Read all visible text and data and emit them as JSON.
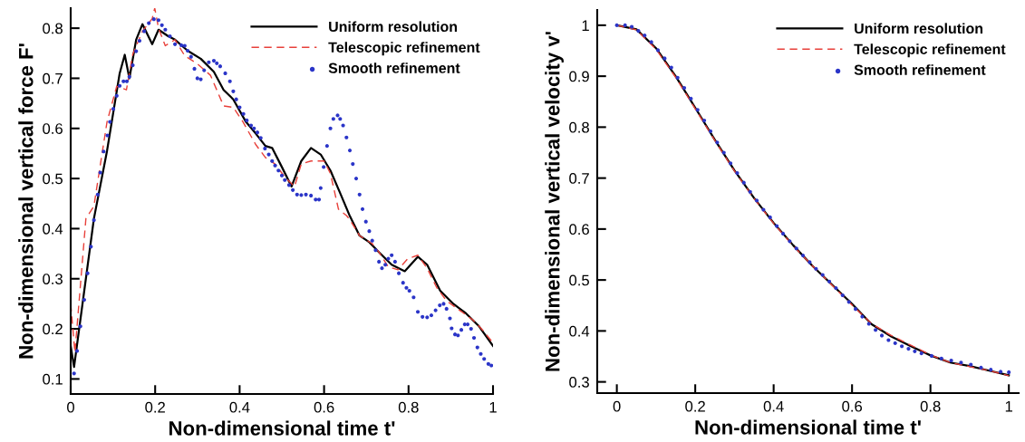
{
  "chart_data": [
    {
      "type": "line",
      "xlabel": "Non-dimensional time t'",
      "ylabel": "Non-dimensional vertical force F'",
      "xlim": [
        0,
        1
      ],
      "ylim": [
        0.07,
        0.84
      ],
      "xticks": [
        0,
        0.2,
        0.4,
        0.6,
        0.8,
        1
      ],
      "yticks": [
        0.1,
        0.2,
        0.3,
        0.4,
        0.5,
        0.6,
        0.7,
        0.8
      ],
      "legend": "top right",
      "grid": false,
      "series": [
        {
          "name": "Uniform resolution",
          "color": "#000000",
          "line_style": "solid",
          "marker": "none",
          "x": [
            0,
            0.008,
            0.055,
            0.086,
            0.116,
            0.128,
            0.139,
            0.155,
            0.17,
            0.193,
            0.208,
            0.231,
            0.247,
            0.277,
            0.308,
            0.339,
            0.362,
            0.385,
            0.415,
            0.438,
            0.461,
            0.477,
            0.5,
            0.523,
            0.546,
            0.569,
            0.592,
            0.615,
            0.638,
            0.661,
            0.684,
            0.707,
            0.73,
            0.76,
            0.791,
            0.822,
            0.844,
            0.875,
            0.906,
            0.936,
            0.967,
            1.0
          ],
          "values": [
            0.166,
            0.124,
            0.42,
            0.555,
            0.71,
            0.747,
            0.7,
            0.777,
            0.808,
            0.768,
            0.797,
            0.784,
            0.777,
            0.755,
            0.739,
            0.713,
            0.677,
            0.658,
            0.613,
            0.59,
            0.565,
            0.561,
            0.523,
            0.484,
            0.535,
            0.561,
            0.548,
            0.516,
            0.471,
            0.425,
            0.386,
            0.373,
            0.353,
            0.328,
            0.315,
            0.344,
            0.328,
            0.276,
            0.25,
            0.231,
            0.205,
            0.166
          ]
        },
        {
          "name": "Telescopic refinement",
          "color": "#e8403a",
          "line_style": "dashed",
          "marker": "none",
          "x": [
            0,
            0.01,
            0.036,
            0.055,
            0.086,
            0.109,
            0.132,
            0.147,
            0.17,
            0.193,
            0.199,
            0.208,
            0.224,
            0.247,
            0.27,
            0.3,
            0.331,
            0.362,
            0.385,
            0.408,
            0.438,
            0.461,
            0.484,
            0.507,
            0.53,
            0.546,
            0.569,
            0.6,
            0.615,
            0.634,
            0.653,
            0.661,
            0.684,
            0.714,
            0.73,
            0.752,
            0.775,
            0.798,
            0.822,
            0.844,
            0.867,
            0.89,
            0.921,
            0.952,
            0.975,
            1.0
          ],
          "values": [
            0.25,
            0.153,
            0.42,
            0.445,
            0.613,
            0.684,
            0.677,
            0.748,
            0.794,
            0.819,
            0.84,
            0.8,
            0.765,
            0.777,
            0.745,
            0.729,
            0.706,
            0.645,
            0.642,
            0.613,
            0.568,
            0.542,
            0.529,
            0.503,
            0.484,
            0.529,
            0.535,
            0.535,
            0.51,
            0.439,
            0.426,
            0.418,
            0.386,
            0.37,
            0.353,
            0.324,
            0.318,
            0.34,
            0.347,
            0.321,
            0.282,
            0.256,
            0.237,
            0.218,
            0.198,
            0.172
          ]
        },
        {
          "name": "Smooth refinement",
          "type": "scatter",
          "color": "#2b35c8",
          "marker": "circle",
          "x": [
            0.008,
            0.015,
            0.023,
            0.032,
            0.04,
            0.048,
            0.055,
            0.064,
            0.07,
            0.078,
            0.087,
            0.093,
            0.101,
            0.109,
            0.116,
            0.125,
            0.133,
            0.139,
            0.147,
            0.155,
            0.163,
            0.174,
            0.185,
            0.197,
            0.208,
            0.216,
            0.224,
            0.235,
            0.247,
            0.262,
            0.27,
            0.277,
            0.285,
            0.293,
            0.3,
            0.308,
            0.316,
            0.327,
            0.339,
            0.346,
            0.354,
            0.366,
            0.377,
            0.385,
            0.392,
            0.4,
            0.409,
            0.417,
            0.427,
            0.434,
            0.442,
            0.45,
            0.46,
            0.469,
            0.477,
            0.484,
            0.492,
            0.5,
            0.507,
            0.517,
            0.526,
            0.536,
            0.546,
            0.557,
            0.569,
            0.58,
            0.588,
            0.592,
            0.599,
            0.607,
            0.615,
            0.622,
            0.632,
            0.638,
            0.645,
            0.653,
            0.661,
            0.668,
            0.676,
            0.684,
            0.691,
            0.699,
            0.707,
            0.714,
            0.722,
            0.73,
            0.737,
            0.745,
            0.752,
            0.76,
            0.768,
            0.777,
            0.787,
            0.795,
            0.802,
            0.812,
            0.822,
            0.833,
            0.844,
            0.854,
            0.864,
            0.874,
            0.883,
            0.89,
            0.898,
            0.902,
            0.91,
            0.917,
            0.925,
            0.933,
            0.94,
            0.948,
            0.955,
            0.963,
            0.971,
            0.979,
            0.989,
            0.996
          ],
          "values": [
            0.111,
            0.156,
            0.205,
            0.258,
            0.311,
            0.364,
            0.417,
            0.468,
            0.512,
            0.554,
            0.586,
            0.613,
            0.639,
            0.665,
            0.685,
            0.694,
            0.694,
            0.703,
            0.726,
            0.754,
            0.775,
            0.794,
            0.81,
            0.818,
            0.816,
            0.806,
            0.797,
            0.784,
            0.768,
            0.766,
            0.765,
            0.755,
            0.743,
            0.719,
            0.7,
            0.698,
            0.716,
            0.732,
            0.735,
            0.73,
            0.724,
            0.71,
            0.694,
            0.674,
            0.658,
            0.642,
            0.629,
            0.616,
            0.606,
            0.6,
            0.592,
            0.581,
            0.56,
            0.548,
            0.535,
            0.526,
            0.516,
            0.506,
            0.497,
            0.487,
            0.477,
            0.468,
            0.467,
            0.468,
            0.466,
            0.458,
            0.458,
            0.481,
            0.523,
            0.565,
            0.6,
            0.619,
            0.626,
            0.619,
            0.606,
            0.582,
            0.556,
            0.529,
            0.5,
            0.468,
            0.439,
            0.414,
            0.395,
            0.376,
            0.357,
            0.334,
            0.321,
            0.328,
            0.34,
            0.347,
            0.334,
            0.311,
            0.292,
            0.282,
            0.276,
            0.263,
            0.234,
            0.224,
            0.223,
            0.227,
            0.237,
            0.247,
            0.25,
            0.24,
            0.221,
            0.201,
            0.189,
            0.187,
            0.198,
            0.209,
            0.209,
            0.2,
            0.182,
            0.163,
            0.15,
            0.14,
            0.13,
            0.127
          ]
        }
      ]
    },
    {
      "type": "line",
      "xlabel": "Non-dimensional time t'",
      "ylabel": "Non-dimensional vertical velocity v'",
      "xlim": [
        -0.05,
        1.025
      ],
      "ylim": [
        0.278,
        1.03
      ],
      "xticks": [
        0,
        0.2,
        0.4,
        0.6,
        0.8,
        1
      ],
      "yticks": [
        0.3,
        0.4,
        0.5,
        0.6,
        0.7,
        0.8,
        0.9,
        1
      ],
      "legend": "top right",
      "grid": false,
      "series": [
        {
          "name": "Uniform resolution",
          "color": "#000000",
          "line_style": "solid",
          "marker": "none",
          "x": [
            0,
            0.05,
            0.1,
            0.15,
            0.2,
            0.25,
            0.3,
            0.35,
            0.4,
            0.45,
            0.5,
            0.55,
            0.6,
            0.65,
            0.7,
            0.75,
            0.8,
            0.85,
            0.9,
            0.95,
            1.0
          ],
          "values": [
            1.0,
            0.992,
            0.955,
            0.9,
            0.838,
            0.775,
            0.715,
            0.661,
            0.612,
            0.568,
            0.527,
            0.49,
            0.453,
            0.413,
            0.389,
            0.37,
            0.352,
            0.338,
            0.331,
            0.322,
            0.313
          ]
        },
        {
          "name": "Telescopic refinement",
          "color": "#e8403a",
          "line_style": "dashed",
          "marker": "none",
          "x": [
            0,
            0.05,
            0.1,
            0.15,
            0.2,
            0.25,
            0.3,
            0.35,
            0.4,
            0.45,
            0.5,
            0.55,
            0.6,
            0.65,
            0.7,
            0.75,
            0.8,
            0.85,
            0.9,
            0.95,
            1.0
          ],
          "values": [
            1.0,
            0.991,
            0.953,
            0.898,
            0.836,
            0.774,
            0.714,
            0.66,
            0.611,
            0.567,
            0.527,
            0.489,
            0.451,
            0.414,
            0.391,
            0.372,
            0.353,
            0.338,
            0.33,
            0.322,
            0.312
          ]
        },
        {
          "name": "Smooth refinement",
          "type": "scatter",
          "color": "#2b35c8",
          "marker": "circle",
          "x": [
            0,
            0.021,
            0.038,
            0.055,
            0.071,
            0.088,
            0.105,
            0.122,
            0.139,
            0.155,
            0.172,
            0.189,
            0.206,
            0.223,
            0.239,
            0.256,
            0.273,
            0.29,
            0.307,
            0.324,
            0.34,
            0.357,
            0.374,
            0.391,
            0.408,
            0.424,
            0.441,
            0.458,
            0.475,
            0.492,
            0.508,
            0.525,
            0.542,
            0.559,
            0.576,
            0.592,
            0.609,
            0.626,
            0.643,
            0.66,
            0.676,
            0.693,
            0.71,
            0.727,
            0.744,
            0.76,
            0.777,
            0.803,
            0.828,
            0.853,
            0.878,
            0.903,
            0.929,
            0.954,
            0.979,
            1.0
          ],
          "values": [
            1.0,
            1.0,
            0.997,
            0.989,
            0.98,
            0.967,
            0.951,
            0.935,
            0.917,
            0.897,
            0.877,
            0.856,
            0.834,
            0.813,
            0.792,
            0.77,
            0.75,
            0.729,
            0.71,
            0.691,
            0.673,
            0.656,
            0.638,
            0.623,
            0.606,
            0.591,
            0.576,
            0.562,
            0.548,
            0.535,
            0.522,
            0.51,
            0.497,
            0.484,
            0.47,
            0.457,
            0.443,
            0.428,
            0.414,
            0.402,
            0.391,
            0.382,
            0.376,
            0.37,
            0.365,
            0.36,
            0.356,
            0.351,
            0.346,
            0.342,
            0.338,
            0.334,
            0.328,
            0.324,
            0.32,
            0.319
          ]
        }
      ]
    }
  ]
}
